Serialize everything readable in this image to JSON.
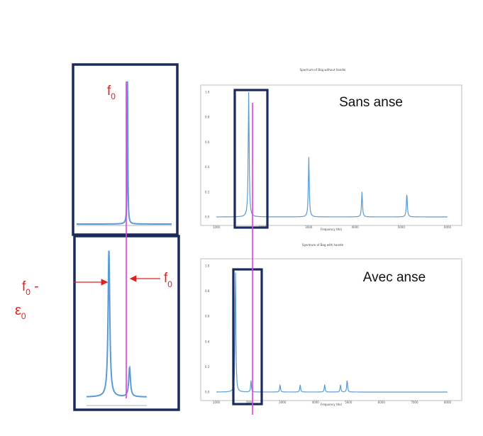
{
  "colors": {
    "spectrum": "#5b9bd5",
    "marker": "#e040e0",
    "frame": "#1b2a5c",
    "annotation": "#e02020",
    "axis": "#9a9a9a"
  },
  "annotations": {
    "f0_top": "f",
    "f0_top_sub": "0",
    "f0_arrow": "f",
    "f0_arrow_sub": "0",
    "f0_minus_main": "f",
    "f0_minus_sub": "0",
    "f0_minus_tail": " -",
    "eps_main": "ε",
    "eps_sub": "0"
  },
  "chart_data": [
    {
      "type": "line",
      "title": "Spectrum of Bag without handle",
      "corner_label": "Sans anse",
      "xlabel": "Frequency (Hz)",
      "ylabel": "",
      "xticks": [
        "1000",
        "2000",
        "3000",
        "4000",
        "5000",
        "6000"
      ],
      "yticks": [
        "0.0",
        "0.2",
        "0.4",
        "0.6",
        "0.8",
        "1.0"
      ],
      "xlim": [
        1000,
        6000
      ],
      "ylim": [
        0,
        1
      ],
      "peaks": [
        {
          "x": 1700,
          "y": 1.0
        },
        {
          "x": 3000,
          "y": 0.48
        },
        {
          "x": 4150,
          "y": 0.2
        },
        {
          "x": 5120,
          "y": 0.19
        }
      ],
      "marker_x": 1700
    },
    {
      "type": "line",
      "title": "Spectrum of Bag with handle",
      "corner_label": "Avec anse",
      "xlabel": "Frequency (Hz)",
      "ylabel": "",
      "xticks": [
        "1000",
        "2000",
        "3000",
        "4000",
        "5000",
        "6000",
        "7000",
        "8000"
      ],
      "yticks": [
        "0.0",
        "0.2",
        "0.4",
        "0.6",
        "0.8",
        "1.0"
      ],
      "xlim": [
        1000,
        8000
      ],
      "ylim": [
        0,
        1
      ],
      "peaks": [
        {
          "x": 1580,
          "y": 1.0
        },
        {
          "x": 2050,
          "y": 0.09
        },
        {
          "x": 2930,
          "y": 0.06
        },
        {
          "x": 3540,
          "y": 0.06
        },
        {
          "x": 4280,
          "y": 0.06
        },
        {
          "x": 4760,
          "y": 0.06
        },
        {
          "x": 4960,
          "y": 0.1
        }
      ],
      "marker_x": 1700
    },
    {
      "type": "line",
      "title": "",
      "peaks": [
        {
          "x": 1700,
          "y": 1.0
        }
      ],
      "marker_x": 1700
    },
    {
      "type": "line",
      "title": "",
      "peaks": [
        {
          "x": 1580,
          "y": 1.0
        },
        {
          "x": 1700,
          "y": 0.2
        }
      ],
      "marker_x": 1700
    }
  ]
}
